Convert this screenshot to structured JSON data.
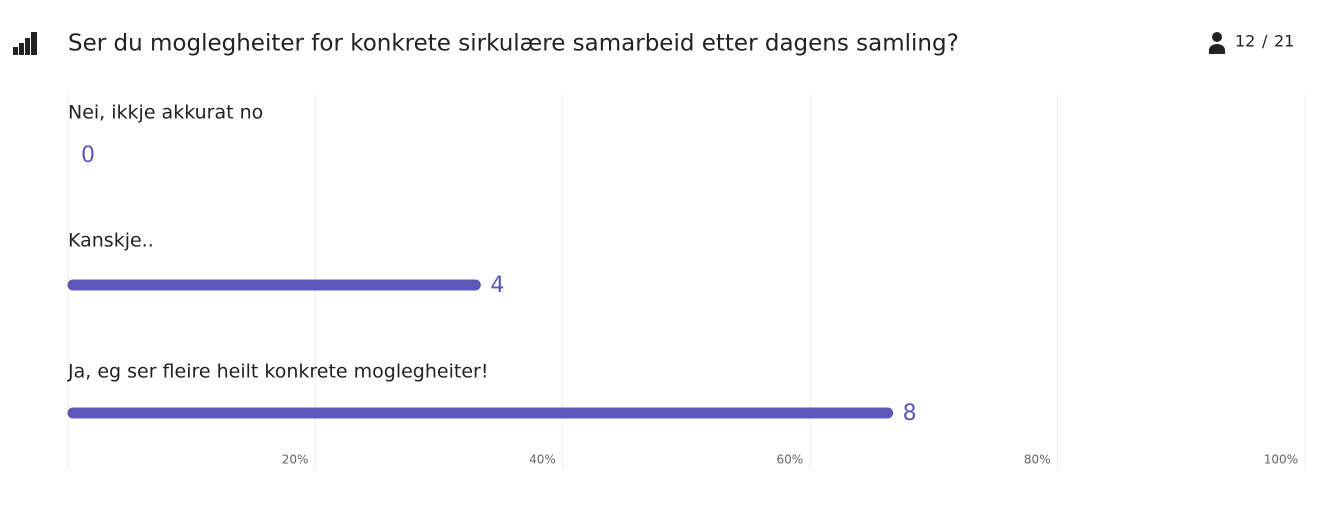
{
  "chart_data": {
    "type": "bar",
    "orientation": "horizontal",
    "title": "Ser du moglegheiter for konkrete sirkulære samarbeid etter dagens samling?",
    "responses": 12,
    "separator": "/",
    "participants": 21,
    "categories": [
      "Nei, ikkje akkurat no",
      "Kanskje..",
      "Ja, eg ser fleire heilt konkrete moglegheiter!"
    ],
    "values": [
      0,
      4,
      8
    ],
    "color": "#5b58b8",
    "xlim": [
      0,
      100
    ],
    "xticks": [
      {
        "value": 20,
        "label": "20%"
      },
      {
        "value": 40,
        "label": "40%"
      },
      {
        "value": 60,
        "label": "60%"
      },
      {
        "value": 80,
        "label": "80%"
      },
      {
        "value": 100,
        "label": "100%"
      }
    ],
    "grid": true
  }
}
